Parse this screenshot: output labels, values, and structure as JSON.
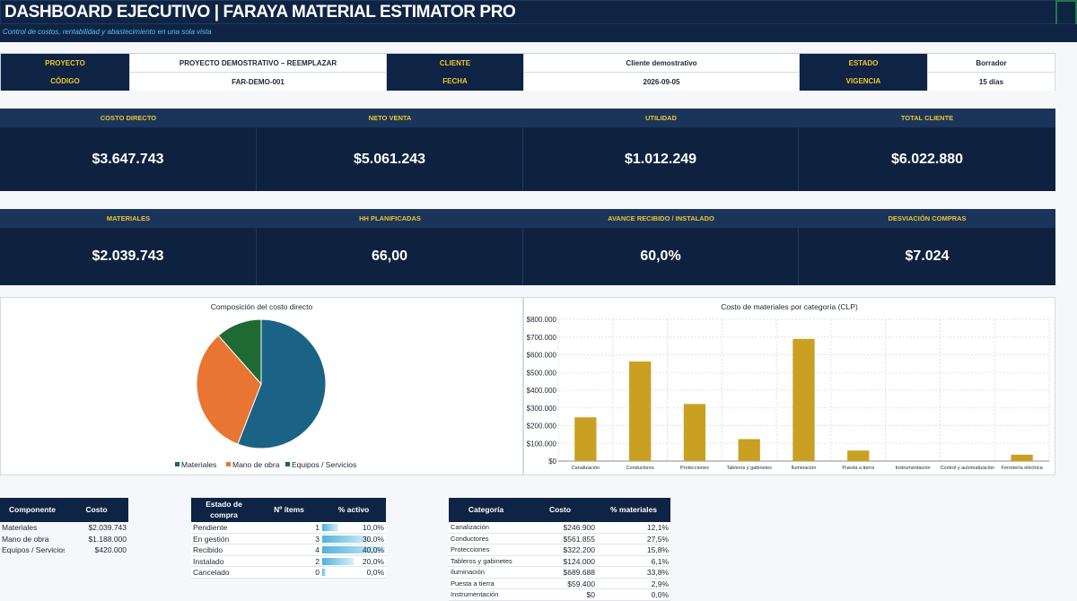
{
  "header": {
    "title": "DASHBOARD EJECUTIVO | FARAYA MATERIAL ESTIMATOR PRO",
    "subtitle": "Control de costos, rentabilidad y abastecimiento en una sola vista"
  },
  "info": {
    "proyecto_label": "PROYECTO",
    "proyecto_value": "PROYECTO DEMOSTRATIVO – REEMPLAZAR",
    "cliente_label": "CLIENTE",
    "cliente_value": "Cliente demostrativo",
    "estado_label": "ESTADO",
    "estado_value": "Borrador",
    "codigo_label": "CÓDIGO",
    "codigo_value": "FAR-DEMO-001",
    "fecha_label": "FECHA",
    "fecha_value": "2026-09-05",
    "vigencia_label": "VIGENCIA",
    "vigencia_value": "15 días"
  },
  "kpis_1": [
    {
      "label": "COSTO DIRECTO",
      "value": "$3.647.743"
    },
    {
      "label": "NETO VENTA",
      "value": "$5.061.243"
    },
    {
      "label": "UTILIDAD",
      "value": "$1.012.249"
    },
    {
      "label": "TOTAL CLIENTE",
      "value": "$6.022.880"
    }
  ],
  "kpis_2": [
    {
      "label": "MATERIALES",
      "value": "$2.039.743"
    },
    {
      "label": "HH PLANIFICADAS",
      "value": "66,00"
    },
    {
      "label": "AVANCE RECIBIDO / INSTALADO",
      "value": "60,0%"
    },
    {
      "label": "DESVIACIÓN COMPRAS",
      "value": "$7.024"
    }
  ],
  "colors": {
    "navy": "#0f2444",
    "gold": "#f0c431",
    "cyan": "#4fc3f7",
    "pie_materiales": "#1a6385",
    "pie_mano_obra": "#e87532",
    "pie_equipos": "#1f6a33",
    "bar": "#c9a021"
  },
  "chart_data": [
    {
      "type": "pie",
      "title": "Composición del costo directo",
      "labels": [
        "Materiales",
        "Mano de obra",
        "Equipos / Servicios"
      ],
      "values": [
        2039743,
        1188000,
        420000
      ],
      "legend": "bottom"
    },
    {
      "type": "bar",
      "title": "Costo de materiales por categoría (CLP)",
      "categories": [
        "Canalización",
        "Conductores",
        "Protecciones",
        "Tableros y gabinetes",
        "Iluminación",
        "Puesta a tierra",
        "Instrumentación",
        "Control y automatización",
        "Ferretería eléctrica"
      ],
      "values": [
        246900,
        561855,
        322200,
        124000,
        689688,
        59400,
        0,
        0,
        36000
      ],
      "ylim": [
        0,
        800000
      ],
      "yticks": [
        "$0",
        "$100.000",
        "$200.000",
        "$300.000",
        "$400.000",
        "$500.000",
        "$600.000",
        "$700.000",
        "$800.000"
      ],
      "grid": true
    }
  ],
  "tables": {
    "componentes": {
      "headers": [
        "Componente",
        "Costo"
      ],
      "rows": [
        [
          "Materiales",
          "$2.039.743"
        ],
        [
          "Mano de obra",
          "$1.188.000"
        ],
        [
          "Equipos / Servicios",
          "$420.000"
        ]
      ]
    },
    "estado_compra": {
      "headers": [
        "Estado de compra",
        "Nº ítems",
        "% activo"
      ],
      "rows": [
        {
          "estado": "Pendiente",
          "items": "1",
          "pct": "10,0%",
          "fraction": 0.1
        },
        {
          "estado": "En gestión",
          "items": "3",
          "pct": "30,0%",
          "fraction": 0.3
        },
        {
          "estado": "Recibido",
          "items": "4",
          "pct": "40,0%",
          "fraction": 0.4
        },
        {
          "estado": "Instalado",
          "items": "2",
          "pct": "20,0%",
          "fraction": 0.2
        },
        {
          "estado": "Cancelado",
          "items": "0",
          "pct": "0,0%",
          "fraction": 0.0
        }
      ]
    },
    "categorias": {
      "headers": [
        "Categoría",
        "Costo",
        "% materiales"
      ],
      "rows": [
        [
          "Canalización",
          "$246.900",
          "12,1%"
        ],
        [
          "Conductores",
          "$561.855",
          "27,5%"
        ],
        [
          "Protecciones",
          "$322.200",
          "15,8%"
        ],
        [
          "Tableros y gabinetes",
          "$124.000",
          "6,1%"
        ],
        [
          "Iluminación",
          "$689.688",
          "33,8%"
        ],
        [
          "Puesta a tierra",
          "$59.400",
          "2,9%"
        ],
        [
          "Instrumentación",
          "$0",
          "0,0%"
        ]
      ]
    }
  }
}
